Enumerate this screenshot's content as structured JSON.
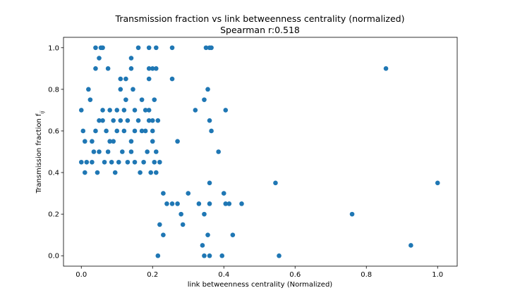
{
  "chart_data": {
    "type": "scatter",
    "title": "Transmission fraction vs link betweenness centrality (normalized)",
    "subtitle": "Spearman r:0.518",
    "xlabel": "link betweenness centrality (Normalized)",
    "ylabel": "Transmission fraction f",
    "ylabel_subscript": "ij",
    "xlim": [
      -0.05,
      1.055
    ],
    "ylim": [
      -0.05,
      1.05
    ],
    "xticks": [
      0.0,
      0.2,
      0.4,
      0.6,
      0.8,
      1.0
    ],
    "xtick_labels": [
      "0.0",
      "0.2",
      "0.4",
      "0.6",
      "0.8",
      "1.0"
    ],
    "yticks": [
      0.0,
      0.2,
      0.4,
      0.6,
      0.8,
      1.0
    ],
    "ytick_labels": [
      "0.0",
      "0.2",
      "0.4",
      "0.6",
      "0.8",
      "1.0"
    ],
    "grid": false,
    "marker_color": "#1f77b4",
    "points": [
      [
        0.0,
        0.7
      ],
      [
        0.02,
        0.8
      ],
      [
        0.025,
        0.75
      ],
      [
        0.04,
        0.9
      ],
      [
        0.04,
        1.0
      ],
      [
        0.05,
        0.95
      ],
      [
        0.055,
        1.0
      ],
      [
        0.06,
        1.0
      ],
      [
        0.075,
        0.9
      ],
      [
        0.11,
        0.85
      ],
      [
        0.11,
        0.8
      ],
      [
        0.125,
        0.85
      ],
      [
        0.125,
        0.75
      ],
      [
        0.14,
        0.9
      ],
      [
        0.14,
        0.95
      ],
      [
        0.145,
        0.8
      ],
      [
        0.16,
        1.0
      ],
      [
        0.17,
        0.75
      ],
      [
        0.19,
        0.85
      ],
      [
        0.19,
        0.9
      ],
      [
        0.19,
        1.0
      ],
      [
        0.2,
        0.9
      ],
      [
        0.205,
        0.75
      ],
      [
        0.21,
        0.9
      ],
      [
        0.21,
        1.0
      ],
      [
        0.215,
        0.65
      ],
      [
        0.255,
        1.0
      ],
      [
        0.255,
        0.85
      ],
      [
        0.32,
        0.7
      ],
      [
        0.345,
        0.75
      ],
      [
        0.35,
        1.0
      ],
      [
        0.355,
        0.8
      ],
      [
        0.36,
        1.0
      ],
      [
        0.365,
        1.0
      ],
      [
        0.405,
        0.7
      ],
      [
        0.36,
        0.65
      ],
      [
        0.365,
        0.6
      ],
      [
        0.385,
        0.5
      ],
      [
        0.27,
        0.55
      ],
      [
        0.855,
        0.9
      ],
      [
        0.545,
        0.35
      ],
      [
        1.0,
        0.35
      ],
      [
        0.76,
        0.2
      ],
      [
        0.925,
        0.05
      ],
      [
        0.555,
        0.0
      ],
      [
        0.3,
        0.3
      ],
      [
        0.33,
        0.25
      ],
      [
        0.345,
        0.2
      ],
      [
        0.36,
        0.35
      ],
      [
        0.36,
        0.25
      ],
      [
        0.4,
        0.3
      ],
      [
        0.405,
        0.25
      ],
      [
        0.415,
        0.25
      ],
      [
        0.45,
        0.25
      ],
      [
        0.355,
        0.1
      ],
      [
        0.425,
        0.1
      ],
      [
        0.34,
        0.05
      ],
      [
        0.345,
        0.0
      ],
      [
        0.36,
        0.0
      ],
      [
        0.395,
        0.0
      ],
      [
        0.285,
        0.15
      ],
      [
        0.28,
        0.2
      ],
      [
        0.24,
        0.25
      ],
      [
        0.255,
        0.25
      ],
      [
        0.27,
        0.25
      ],
      [
        0.23,
        0.3
      ],
      [
        0.215,
        0.0
      ],
      [
        0.22,
        0.15
      ],
      [
        0.23,
        0.1
      ],
      [
        0.0,
        0.45
      ],
      [
        0.01,
        0.4
      ],
      [
        0.015,
        0.45
      ],
      [
        0.005,
        0.6
      ],
      [
        0.01,
        0.55
      ],
      [
        0.03,
        0.55
      ],
      [
        0.04,
        0.6
      ],
      [
        0.05,
        0.65
      ],
      [
        0.06,
        0.65
      ],
      [
        0.07,
        0.6
      ],
      [
        0.08,
        0.55
      ],
      [
        0.09,
        0.55
      ],
      [
        0.1,
        0.6
      ],
      [
        0.11,
        0.65
      ],
      [
        0.12,
        0.6
      ],
      [
        0.13,
        0.65
      ],
      [
        0.14,
        0.55
      ],
      [
        0.15,
        0.6
      ],
      [
        0.16,
        0.65
      ],
      [
        0.17,
        0.6
      ],
      [
        0.18,
        0.6
      ],
      [
        0.19,
        0.65
      ],
      [
        0.2,
        0.6
      ],
      [
        0.2,
        0.55
      ],
      [
        0.21,
        0.5
      ],
      [
        0.22,
        0.45
      ],
      [
        0.06,
        0.7
      ],
      [
        0.08,
        0.7
      ],
      [
        0.09,
        0.65
      ],
      [
        0.1,
        0.7
      ],
      [
        0.12,
        0.7
      ],
      [
        0.15,
        0.7
      ],
      [
        0.18,
        0.7
      ],
      [
        0.19,
        0.7
      ],
      [
        0.2,
        0.65
      ],
      [
        0.03,
        0.45
      ],
      [
        0.035,
        0.5
      ],
      [
        0.045,
        0.4
      ],
      [
        0.05,
        0.5
      ],
      [
        0.065,
        0.45
      ],
      [
        0.075,
        0.5
      ],
      [
        0.085,
        0.45
      ],
      [
        0.095,
        0.4
      ],
      [
        0.105,
        0.45
      ],
      [
        0.115,
        0.5
      ],
      [
        0.13,
        0.45
      ],
      [
        0.14,
        0.5
      ],
      [
        0.15,
        0.45
      ],
      [
        0.165,
        0.4
      ],
      [
        0.175,
        0.45
      ],
      [
        0.185,
        0.5
      ],
      [
        0.195,
        0.4
      ],
      [
        0.205,
        0.45
      ],
      [
        0.21,
        0.4
      ]
    ]
  }
}
